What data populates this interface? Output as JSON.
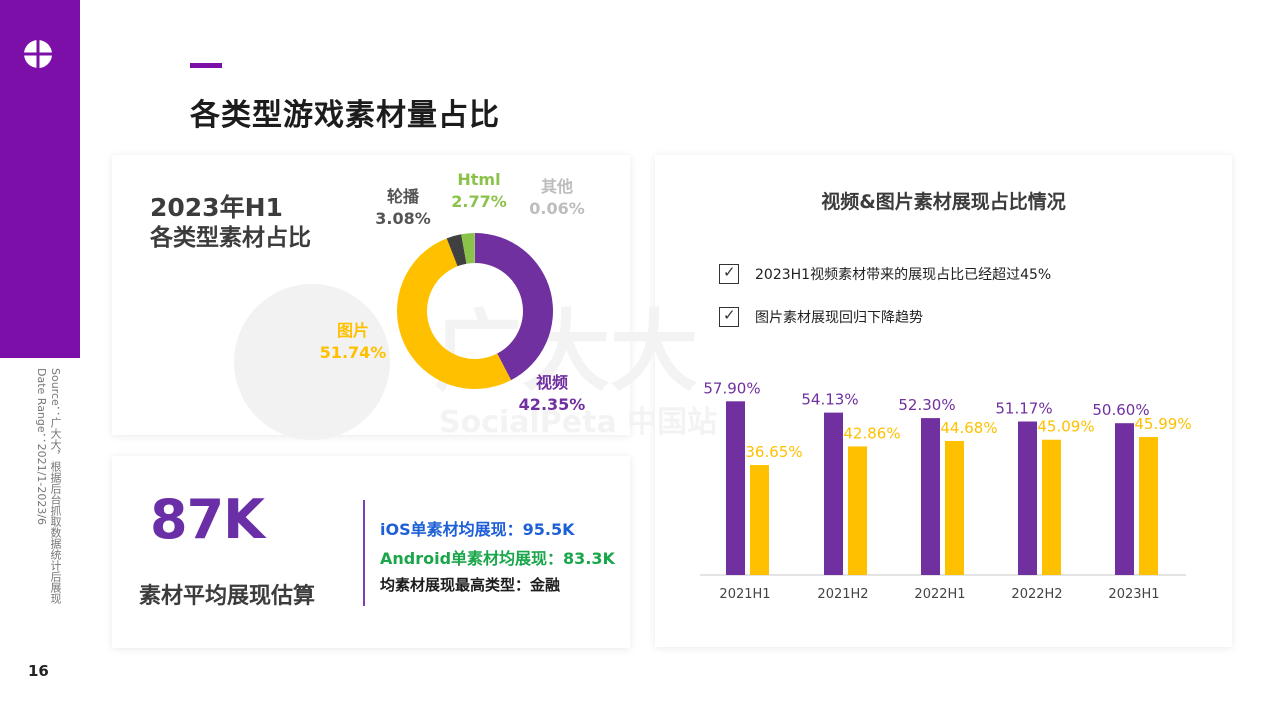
{
  "page": {
    "title": "各类型游戏素材量占比",
    "page_number": "16",
    "source": "Source：广大大，根据后台抓取数据统计后展现\nDate Range：2021/1-2023/6"
  },
  "colors": {
    "brand_purple": "#7b0fa8",
    "video_purple": "#7030a0",
    "image_yellow": "#ffc000",
    "html_green": "#8bc34a",
    "other_dark": "#404040",
    "other_gray": "#bdbdbd"
  },
  "donut_card": {
    "heading_line1": "2023年H1",
    "heading_line2": "各类型素材占比"
  },
  "kpi_card": {
    "big_value": "87K",
    "caption": "素材平均展现估算",
    "ios": "iOS单素材均展现：95.5K",
    "android": "Android单素材均展现：83.3K",
    "top_type": "均素材展现最高类型：金融"
  },
  "bar_card": {
    "title": "视频&图片素材展现占比情况",
    "bullet1": "2023H1视频素材带来的展现占比已经超过45%",
    "bullet2": "图片素材展现回归下降趋势"
  },
  "chart_data": [
    {
      "type": "pie",
      "title": "2023年H1 各类型素材占比",
      "donut": true,
      "labels": [
        "视频",
        "图片",
        "轮播",
        "Html",
        "其他"
      ],
      "values": [
        42.35,
        51.74,
        3.08,
        2.77,
        0.06
      ],
      "value_labels": [
        "42.35%",
        "51.74%",
        "3.08%",
        "2.77%",
        "0.06%"
      ],
      "colors": [
        "#7030a0",
        "#ffc000",
        "#404040",
        "#8bc34a",
        "#bdbdbd"
      ]
    },
    {
      "type": "bar",
      "title": "视频&图片素材展现占比情况",
      "categories": [
        "2021H1",
        "2021H2",
        "2022H1",
        "2022H2",
        "2023H1"
      ],
      "series": [
        {
          "values": [
            57.9,
            54.13,
            52.3,
            51.17,
            50.6
          ],
          "labels": [
            "57.90%",
            "54.13%",
            "52.30%",
            "51.17%",
            "50.60%"
          ],
          "color": "#7030a0"
        },
        {
          "values": [
            36.65,
            42.86,
            44.68,
            45.09,
            45.99
          ],
          "labels": [
            "36.65%",
            "42.86%",
            "44.68%",
            "45.09%",
            "45.99%"
          ],
          "color": "#ffc000"
        }
      ],
      "grid": false
    }
  ]
}
